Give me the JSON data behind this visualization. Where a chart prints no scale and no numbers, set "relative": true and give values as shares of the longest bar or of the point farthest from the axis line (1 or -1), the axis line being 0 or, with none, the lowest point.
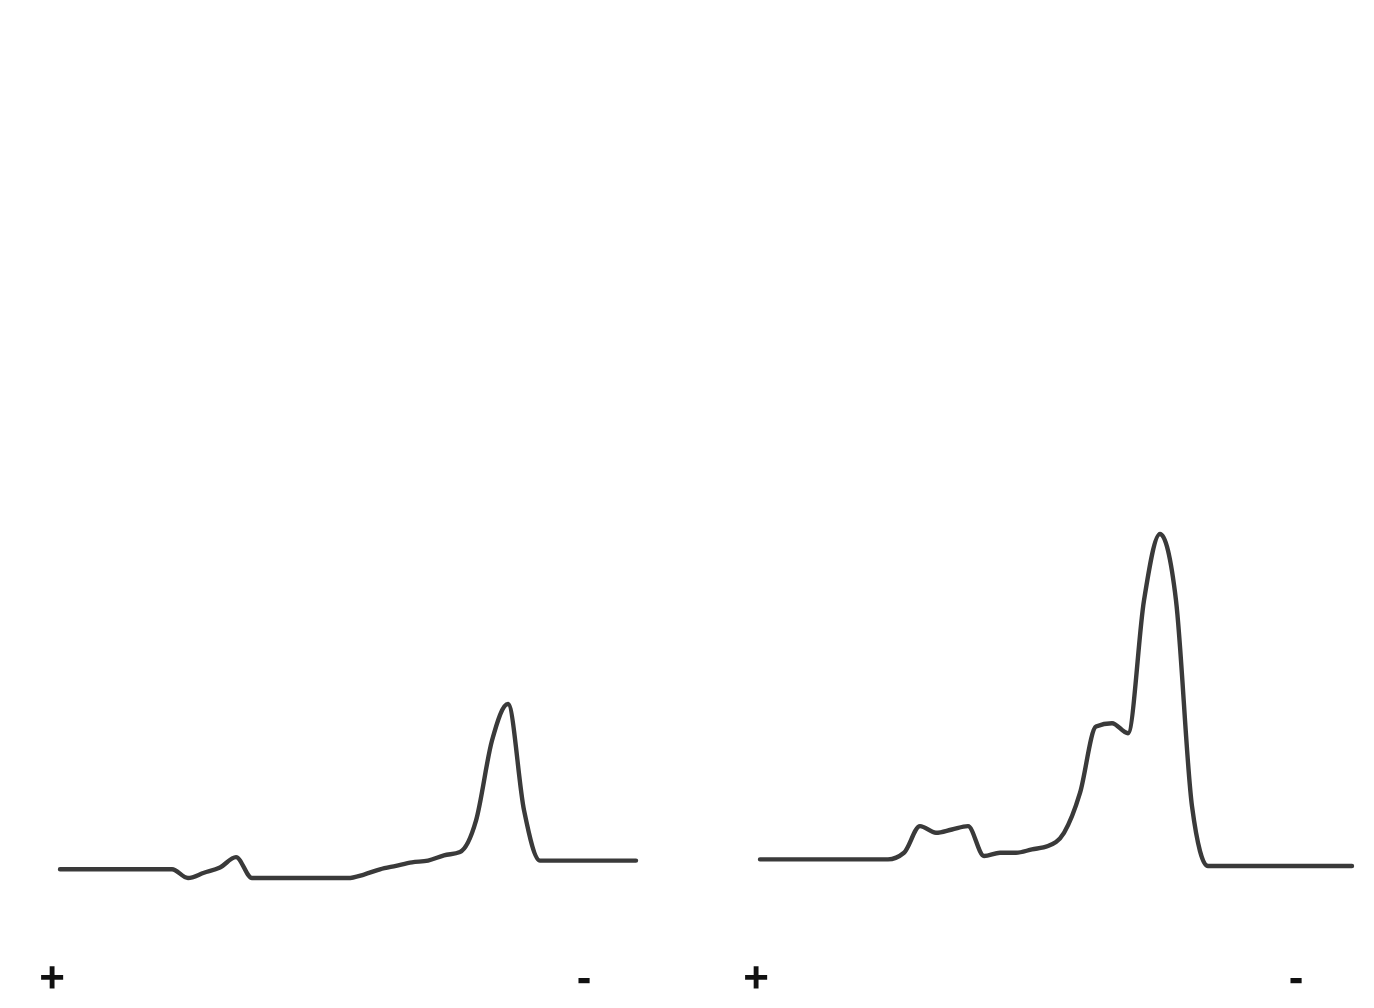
{
  "chart_data": [
    {
      "type": "line",
      "relative": true,
      "categories": [
        null,
        null,
        null,
        null,
        null,
        null,
        null,
        null,
        null,
        null,
        null,
        null,
        null,
        null,
        null,
        null,
        null,
        null,
        null,
        null,
        null,
        null,
        null,
        null,
        null,
        null,
        null,
        null,
        null,
        null,
        null,
        null,
        null,
        null,
        null,
        null,
        null
      ],
      "series": [
        {
          "color": "#3a3a3a",
          "values": [
            0.05,
            0.05,
            0.05,
            0.05,
            0.05,
            0.05,
            0.05,
            0.05,
            0,
            0.03,
            0.06,
            0.12,
            0,
            0,
            0,
            0,
            0,
            0,
            0,
            0.02,
            0.05,
            0.07,
            0.09,
            0.1,
            0.13,
            0.15,
            0.33,
            0.79,
            1,
            0.39,
            0.1,
            0.1,
            0.1,
            0.1,
            0.1,
            0.1,
            0.1
          ]
        }
      ],
      "annotations": [
        "+",
        "-"
      ]
    },
    {
      "type": "line",
      "relative": true,
      "categories": [
        null,
        null,
        null,
        null,
        null,
        null,
        null,
        null,
        null,
        null,
        null,
        null,
        null,
        null,
        null,
        null,
        null,
        null,
        null,
        null,
        null,
        null,
        null,
        null,
        null,
        null,
        null,
        null,
        null,
        null,
        null,
        null,
        null,
        null,
        null,
        null,
        null,
        null
      ],
      "series": [
        {
          "color": "#3a3a3a",
          "values": [
            0.02,
            0.02,
            0.02,
            0.02,
            0.02,
            0.02,
            0.02,
            0.02,
            0.02,
            0.04,
            0.12,
            0.1,
            0.11,
            0.12,
            0.03,
            0.04,
            0.04,
            0.05,
            0.06,
            0.1,
            0.22,
            0.42,
            0.43,
            0.4,
            0.8,
            1,
            0.8,
            0.18,
            0,
            0,
            0,
            0,
            0,
            0,
            0,
            0,
            0,
            0
          ]
        }
      ],
      "annotations": [
        "+",
        "-"
      ]
    }
  ]
}
